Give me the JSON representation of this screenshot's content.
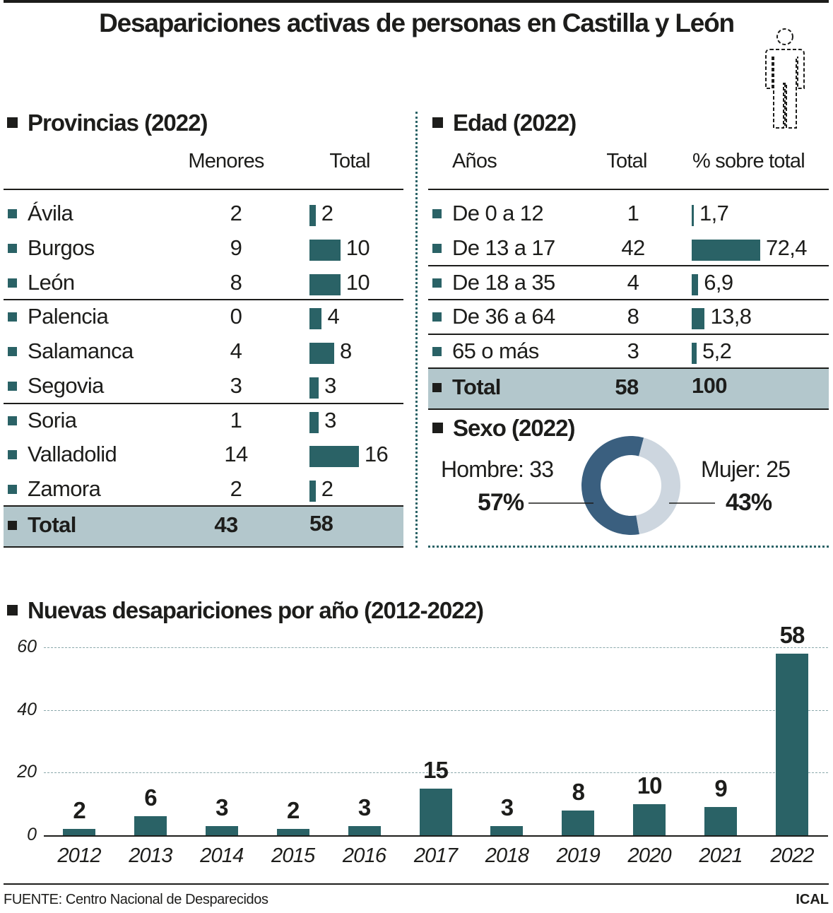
{
  "title": "Desapariciones activas de personas en Castilla y León",
  "icon": "person-outline-icon",
  "colors": {
    "bar": "#2a6266",
    "total_bg": "#b3c7cc",
    "hombre": "#3a5f7f",
    "mujer": "#cdd6df"
  },
  "provincias": {
    "heading": "Provincias (2022)",
    "col_menores": "Menores",
    "col_total": "Total",
    "rows": [
      {
        "name": "Ávila",
        "menores": "2",
        "total": 2
      },
      {
        "name": "Burgos",
        "menores": "9",
        "total": 10
      },
      {
        "name": "León",
        "menores": "8",
        "total": 10
      },
      {
        "name": "Palencia",
        "menores": "0",
        "total": 4
      },
      {
        "name": "Salamanca",
        "menores": "4",
        "total": 8
      },
      {
        "name": "Segovia",
        "menores": "3",
        "total": 3
      },
      {
        "name": "Soria",
        "menores": "1",
        "total": 3
      },
      {
        "name": "Valladolid",
        "menores": "14",
        "total": 16
      },
      {
        "name": "Zamora",
        "menores": "2",
        "total": 2
      }
    ],
    "total": {
      "name": "Total",
      "menores": "43",
      "total": "58"
    }
  },
  "edad": {
    "heading": "Edad (2022)",
    "col_anos": "Años",
    "col_total": "Total",
    "col_pct": "% sobre total",
    "rows": [
      {
        "name": "De 0 a 12",
        "total": "1",
        "pct": 1.7,
        "pct_label": "1,7"
      },
      {
        "name": "De 13 a 17",
        "total": "42",
        "pct": 72.4,
        "pct_label": "72,4"
      },
      {
        "name": "De 18 a 35",
        "total": "4",
        "pct": 6.9,
        "pct_label": "6,9"
      },
      {
        "name": "De 36 a 64",
        "total": "8",
        "pct": 13.8,
        "pct_label": "13,8"
      },
      {
        "name": "65 o más",
        "total": "3",
        "pct": 5.2,
        "pct_label": "5,2"
      }
    ],
    "total": {
      "name": "Total",
      "total": "58",
      "pct": "100"
    }
  },
  "sexo": {
    "heading": "Sexo (2022)",
    "hombre_label": "Hombre: 33",
    "hombre_pct": "57%",
    "hombre_value": 33,
    "mujer_label": "Mujer: 25",
    "mujer_pct": "43%",
    "mujer_value": 25
  },
  "chart_data": {
    "type": "bar",
    "title": "Nuevas desapariciones por año (2012-2022)",
    "categories": [
      "2012",
      "2013",
      "2014",
      "2015",
      "2016",
      "2017",
      "2018",
      "2019",
      "2020",
      "2021",
      "2022"
    ],
    "values": [
      2,
      6,
      3,
      2,
      3,
      15,
      3,
      8,
      10,
      9,
      58
    ],
    "yticks": [
      "0",
      "20",
      "40",
      "60"
    ],
    "ylim": [
      0,
      60
    ],
    "grid": true
  },
  "footer": {
    "source": "FUENTE: Centro Nacional de Desparecidos",
    "brand": "ICAL"
  }
}
